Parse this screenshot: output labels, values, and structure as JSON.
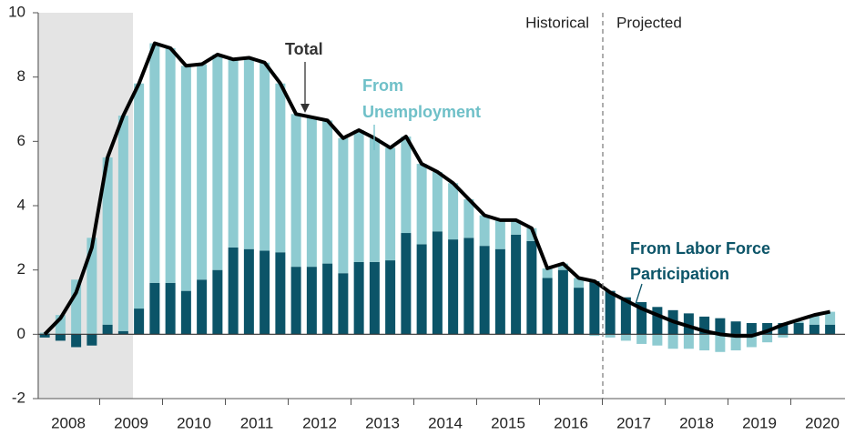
{
  "chart_data": {
    "type": "stacked-bar-line",
    "categories": [
      null,
      null,
      "2008",
      null,
      null,
      null,
      "2009",
      null,
      null,
      null,
      "2010",
      null,
      null,
      null,
      "2011",
      null,
      null,
      null,
      "2012",
      null,
      null,
      null,
      "2013",
      null,
      null,
      null,
      "2014",
      null,
      null,
      null,
      "2015",
      null,
      null,
      null,
      "2016",
      null,
      null,
      null,
      "2017",
      null,
      null,
      null,
      "2018",
      null,
      null,
      null,
      "2019",
      null,
      null,
      null,
      "2020"
    ],
    "series": [
      {
        "name": "From Labor Force Participation",
        "color": "#0b5468",
        "values": [
          -0.1,
          -0.2,
          -0.4,
          -0.35,
          0.3,
          0.1,
          0.8,
          1.6,
          1.6,
          1.35,
          1.7,
          2.0,
          2.7,
          2.65,
          2.6,
          2.55,
          2.1,
          2.1,
          2.2,
          1.9,
          2.25,
          2.25,
          2.3,
          3.15,
          2.8,
          3.2,
          2.95,
          3.0,
          2.75,
          2.65,
          3.1,
          2.9,
          1.75,
          2.0,
          1.45,
          1.65,
          1.35,
          1.15,
          1.0,
          0.85,
          0.75,
          0.65,
          0.55,
          0.5,
          0.4,
          0.35,
          0.35,
          0.35,
          0.35,
          0.3,
          0.3
        ]
      },
      {
        "name": "From Unemployment",
        "color": "#8ecbd1",
        "values": [
          0.05,
          0.6,
          1.7,
          3.0,
          5.2,
          6.7,
          7.0,
          7.45,
          7.3,
          7.0,
          6.7,
          6.7,
          5.85,
          5.95,
          5.85,
          5.25,
          4.75,
          4.65,
          4.45,
          4.2,
          4.1,
          3.85,
          3.5,
          3.0,
          2.5,
          1.85,
          1.75,
          1.2,
          0.95,
          0.9,
          0.45,
          0.4,
          0.3,
          0.2,
          0.3,
          -0.05,
          -0.1,
          -0.2,
          -0.3,
          -0.35,
          -0.45,
          -0.45,
          -0.5,
          -0.55,
          -0.5,
          -0.4,
          -0.25,
          -0.1,
          0.05,
          0.3,
          0.4
        ]
      },
      {
        "name": "Total",
        "color": "#000000",
        "line": true,
        "values": [
          0.0,
          0.5,
          1.3,
          2.7,
          5.5,
          6.8,
          7.8,
          9.05,
          8.9,
          8.35,
          8.4,
          8.7,
          8.55,
          8.6,
          8.45,
          7.8,
          6.85,
          6.75,
          6.65,
          6.1,
          6.35,
          6.1,
          5.8,
          6.15,
          5.3,
          5.05,
          4.7,
          4.2,
          3.7,
          3.55,
          3.55,
          3.3,
          2.05,
          2.2,
          1.75,
          1.65,
          1.3,
          1.05,
          0.8,
          0.6,
          0.4,
          0.25,
          0.1,
          0.0,
          -0.05,
          -0.05,
          0.1,
          0.3,
          0.45,
          0.6,
          0.7
        ]
      }
    ],
    "ylim": [
      -2,
      10
    ],
    "yticks": [
      -2,
      0,
      2,
      4,
      6,
      8,
      10
    ],
    "annotations": [
      "Historical",
      "Projected"
    ]
  }
}
